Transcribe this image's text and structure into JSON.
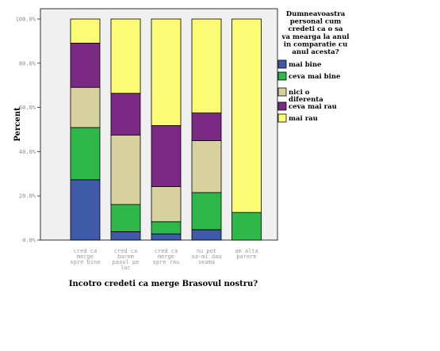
{
  "chart_data": {
    "type": "bar",
    "stacked": true,
    "ylabel": "Percent",
    "xlabel": "Incotro credeti ca merge Brasovul nostru?",
    "ylim": [
      0,
      100
    ],
    "yticks": [
      0,
      20,
      40,
      60,
      80,
      100
    ],
    "ytick_labels": [
      "0.0%",
      "20.0%",
      "40.0%",
      "60.0%",
      "80.0%",
      "100.0%"
    ],
    "categories": [
      [
        "cred ca",
        "merge",
        "spre bine"
      ],
      [
        "cred ca",
        "barem",
        "pasul pe",
        "loc"
      ],
      [
        "cred ca",
        "merge",
        "spre rau"
      ],
      [
        "nu pot",
        "sa-mi dau",
        "seama"
      ],
      [
        "am alta",
        "parere"
      ]
    ],
    "legend_title": [
      "Dumneavoastra",
      "personal cum",
      "credeti ca o sa",
      "va mearga la anul",
      "in comparatie cu",
      "anul acesta?"
    ],
    "legend_position": "right",
    "grid": false,
    "series": [
      {
        "name": "mai bine",
        "label_lines": [
          "mai bine"
        ],
        "color": "#3f5aa8",
        "values": [
          27.3,
          3.8,
          2.8,
          4.7,
          0
        ]
      },
      {
        "name": "ceva mai bine",
        "label_lines": [
          "ceva mai bine"
        ],
        "color": "#2eb84a",
        "values": [
          23.6,
          12.3,
          5.5,
          16.8,
          12.5
        ]
      },
      {
        "name": "nici o diferenta",
        "label_lines": [
          "nici o",
          "diferenta"
        ],
        "color": "#d6d19d",
        "values": [
          18.2,
          31.4,
          15.9,
          23.5,
          0
        ]
      },
      {
        "name": "ceva mai rau",
        "label_lines": [
          "ceva mai rau"
        ],
        "color": "#7b2a84",
        "values": [
          20.0,
          18.9,
          27.6,
          12.5,
          0
        ]
      },
      {
        "name": "mai rau",
        "label_lines": [
          "mai rau"
        ],
        "color": "#fbfb74",
        "values": [
          10.9,
          33.6,
          48.2,
          42.5,
          87.5
        ]
      }
    ],
    "plot_background": "#f0f0f0"
  }
}
